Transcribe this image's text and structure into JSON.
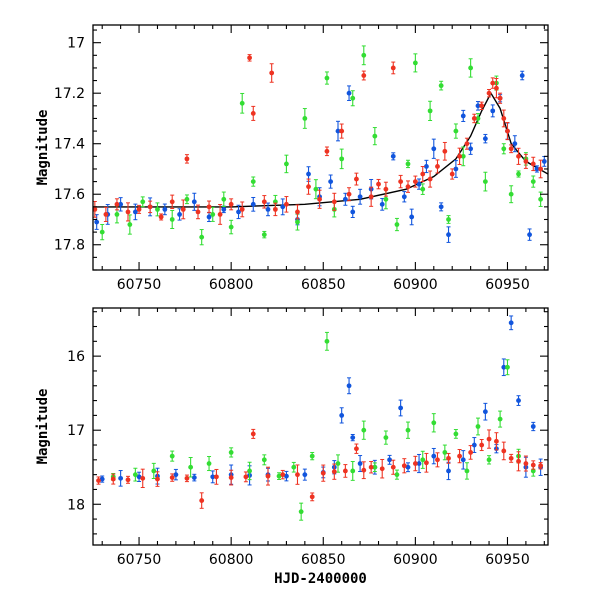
{
  "chart_data": [
    {
      "type": "scatter",
      "panel": "top",
      "title": "",
      "xlabel": "",
      "ylabel": "Magnitude",
      "xlim": [
        60725,
        60972
      ],
      "ylim": [
        17.9,
        16.93
      ],
      "y_inverted": true,
      "grid": false,
      "legend": "none",
      "x_ticks": [
        "60750",
        "60800",
        "60850",
        "60900",
        "60950"
      ],
      "x_tick_values": [
        60750,
        60800,
        60850,
        60900,
        60950
      ],
      "y_ticks": [
        "17",
        "17.2",
        "17.4",
        "17.6",
        "17.8"
      ],
      "y_tick_values": [
        17.0,
        17.2,
        17.4,
        17.6,
        17.8
      ],
      "model_curve": {
        "color": "#000000",
        "x": [
          60725,
          60760,
          60800,
          60840,
          60870,
          60895,
          60910,
          60922,
          60930,
          60936,
          60941,
          60946,
          60952,
          60960,
          60972
        ],
        "y": [
          17.65,
          17.65,
          17.65,
          17.64,
          17.62,
          17.58,
          17.53,
          17.46,
          17.37,
          17.27,
          17.2,
          17.26,
          17.4,
          17.47,
          17.52
        ]
      },
      "series": [
        {
          "color": "#1155dd",
          "x": [
            60727,
            60733,
            60740,
            60748,
            60756,
            60764,
            60772,
            60780,
            60788,
            60796,
            60804,
            60812,
            60820,
            60828,
            60836,
            60842,
            60848,
            60854,
            60858,
            60862,
            60864,
            60866,
            60870,
            60876,
            60882,
            60888,
            60894,
            60898,
            60902,
            60906,
            60910,
            60914,
            60918,
            60922,
            60926,
            60930,
            60934,
            60938,
            60942,
            60946,
            60950,
            60954,
            60958,
            60962,
            60966,
            60970
          ],
          "y": [
            17.71,
            17.68,
            17.64,
            17.67,
            17.65,
            17.66,
            17.68,
            17.63,
            17.69,
            17.66,
            17.67,
            17.64,
            17.66,
            17.65,
            17.7,
            17.52,
            17.61,
            17.55,
            17.35,
            17.62,
            17.2,
            17.67,
            17.61,
            17.58,
            17.64,
            17.45,
            17.61,
            17.69,
            17.56,
            17.49,
            17.42,
            17.65,
            17.76,
            17.5,
            17.29,
            17.42,
            17.25,
            17.38,
            17.27,
            17.22,
            17.35,
            17.4,
            17.13,
            17.76,
            17.5,
            17.47
          ]
        },
        {
          "color": "#33dd33",
          "x": [
            60730,
            60738,
            60745,
            60752,
            60760,
            60768,
            60776,
            60784,
            60790,
            60796,
            60800,
            60806,
            60812,
            60818,
            60824,
            60830,
            60836,
            60840,
            60846,
            60852,
            60856,
            60860,
            60866,
            60872,
            60878,
            60884,
            60890,
            60896,
            60900,
            60904,
            60908,
            60914,
            60918,
            60922,
            60926,
            60930,
            60934,
            60938,
            60944,
            60948,
            60952,
            60956,
            60960,
            60964,
            60968
          ],
          "y": [
            17.75,
            17.68,
            17.72,
            17.63,
            17.66,
            17.7,
            17.62,
            17.77,
            17.68,
            17.62,
            17.73,
            17.24,
            17.55,
            17.76,
            17.63,
            17.48,
            17.71,
            17.3,
            17.58,
            17.14,
            17.66,
            17.46,
            17.22,
            17.05,
            17.37,
            17.62,
            17.72,
            17.48,
            17.08,
            17.58,
            17.27,
            17.17,
            17.7,
            17.35,
            17.45,
            17.1,
            17.3,
            17.55,
            17.16,
            17.42,
            17.6,
            17.52,
            17.46,
            17.55,
            17.62
          ]
        },
        {
          "color": "#ee3322",
          "x": [
            60726,
            60732,
            60738,
            60744,
            60750,
            60756,
            60762,
            60768,
            60774,
            60776,
            60782,
            60788,
            60794,
            60800,
            60806,
            60810,
            60812,
            60818,
            60822,
            60824,
            60830,
            60836,
            60842,
            60848,
            60852,
            60856,
            60860,
            60864,
            60868,
            60872,
            60876,
            60880,
            60884,
            60888,
            60892,
            60896,
            60900,
            60904,
            60908,
            60912,
            60916,
            60920,
            60924,
            60928,
            60932,
            60936,
            60940,
            60942,
            60944,
            60946,
            60948,
            60950,
            60952,
            60956,
            60960,
            60964,
            60968
          ],
          "y": [
            17.66,
            17.68,
            17.64,
            17.67,
            17.66,
            17.65,
            17.69,
            17.63,
            17.66,
            17.46,
            17.67,
            17.65,
            17.68,
            17.64,
            17.66,
            17.06,
            17.28,
            17.63,
            17.12,
            17.66,
            17.64,
            17.67,
            17.57,
            17.62,
            17.43,
            17.63,
            17.35,
            17.6,
            17.54,
            17.13,
            17.61,
            17.56,
            17.58,
            17.1,
            17.55,
            17.57,
            17.55,
            17.52,
            17.54,
            17.49,
            17.43,
            17.52,
            17.45,
            17.4,
            17.3,
            17.25,
            17.2,
            17.16,
            17.18,
            17.22,
            17.3,
            17.35,
            17.42,
            17.45,
            17.47,
            17.48,
            17.5
          ]
        }
      ]
    },
    {
      "type": "scatter",
      "panel": "bottom",
      "title": "",
      "xlabel": "HJD-2400000",
      "ylabel": "Magnitude",
      "xlim": [
        60725,
        60972
      ],
      "ylim": [
        18.55,
        15.35
      ],
      "y_inverted": true,
      "grid": false,
      "legend": "none",
      "x_ticks": [
        "60750",
        "60800",
        "60850",
        "60900",
        "60950"
      ],
      "x_tick_values": [
        60750,
        60800,
        60850,
        60900,
        60950
      ],
      "y_ticks": [
        "16",
        "17",
        "18"
      ],
      "y_tick_values": [
        16,
        17,
        18
      ],
      "series": [
        {
          "color": "#1155dd",
          "x": [
            60730,
            60740,
            60750,
            60760,
            60770,
            60780,
            60790,
            60800,
            60810,
            60820,
            60830,
            60840,
            60850,
            60856,
            60860,
            60864,
            60866,
            60870,
            60878,
            60886,
            60892,
            60896,
            60902,
            60910,
            60918,
            60926,
            60932,
            60938,
            60944,
            60948,
            60952,
            60956,
            60960,
            60964,
            60968
          ],
          "y": [
            17.66,
            17.65,
            17.63,
            17.62,
            17.6,
            17.64,
            17.63,
            17.6,
            17.61,
            17.6,
            17.62,
            17.6,
            17.57,
            17.5,
            16.8,
            16.4,
            17.1,
            17.45,
            17.5,
            17.4,
            16.7,
            17.5,
            17.45,
            17.35,
            17.55,
            17.4,
            17.2,
            16.75,
            17.25,
            16.15,
            15.55,
            16.6,
            17.5,
            16.95,
            17.5
          ]
        },
        {
          "color": "#33dd33",
          "x": [
            60736,
            60748,
            60758,
            60768,
            60778,
            60788,
            60800,
            60810,
            60818,
            60826,
            60834,
            60838,
            60844,
            60852,
            60858,
            60866,
            60872,
            60878,
            60884,
            60890,
            60896,
            60904,
            60910,
            60916,
            60922,
            60928,
            60934,
            60940,
            60946,
            60950,
            60956,
            60964
          ],
          "y": [
            17.63,
            17.6,
            17.55,
            17.35,
            17.5,
            17.45,
            17.3,
            17.55,
            17.4,
            17.62,
            17.5,
            18.1,
            17.35,
            15.8,
            17.45,
            17.55,
            17.0,
            17.5,
            17.1,
            17.6,
            17.0,
            17.4,
            16.9,
            17.3,
            17.05,
            17.55,
            16.95,
            17.4,
            16.85,
            16.15,
            17.35,
            17.55
          ]
        },
        {
          "color": "#ee3322",
          "x": [
            60728,
            60736,
            60744,
            60752,
            60760,
            60768,
            60776,
            60784,
            60792,
            60800,
            60808,
            60812,
            60820,
            60828,
            60836,
            60844,
            60850,
            60856,
            60862,
            60868,
            60872,
            60876,
            60882,
            60888,
            60894,
            60900,
            60906,
            60912,
            60918,
            60924,
            60930,
            60936,
            60940,
            60944,
            60948,
            60952,
            60956,
            60960,
            60964,
            60968
          ],
          "y": [
            17.68,
            17.66,
            17.67,
            17.65,
            17.66,
            17.64,
            17.65,
            17.95,
            17.63,
            17.64,
            17.63,
            17.05,
            17.62,
            17.6,
            17.6,
            17.9,
            17.58,
            17.56,
            17.55,
            17.25,
            17.54,
            17.5,
            17.52,
            17.5,
            17.48,
            17.45,
            17.44,
            17.4,
            17.38,
            17.35,
            17.3,
            17.2,
            17.12,
            17.15,
            17.28,
            17.38,
            17.42,
            17.45,
            17.47,
            17.48
          ]
        }
      ]
    }
  ]
}
